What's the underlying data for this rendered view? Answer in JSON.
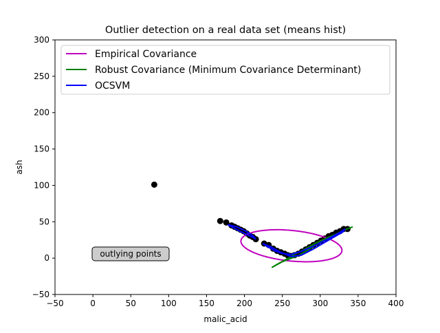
{
  "chart_data": {
    "type": "scatter",
    "title": "Outlier detection on a real data set (means hist)",
    "xlabel": "malic_acid",
    "ylabel": "ash",
    "xlim": [
      -50,
      400
    ],
    "ylim": [
      -50,
      300
    ],
    "xticks": [
      -50,
      0,
      50,
      100,
      150,
      200,
      250,
      300,
      350,
      400
    ],
    "yticks": [
      -50,
      0,
      50,
      100,
      150,
      200,
      250,
      300
    ],
    "grid": false,
    "legend": {
      "placement": "top-left",
      "entries": [
        {
          "label": "Empirical Covariance",
          "color": "#bf00bf"
        },
        {
          "label": "Robust Covariance (Minimum Covariance Determinant)",
          "color": "#008000"
        },
        {
          "label": "OCSVM",
          "color": "#0000ff"
        }
      ]
    },
    "annotation": {
      "text": "outlying points",
      "x": 5,
      "y": 5
    },
    "points": {
      "color": "#000000",
      "x": [
        81,
        168,
        176,
        183,
        187,
        191,
        195,
        199,
        203,
        207,
        211,
        215,
        226,
        232,
        238,
        243,
        248,
        253,
        257,
        261,
        266,
        271,
        276,
        281,
        286,
        291,
        296,
        301,
        306,
        311,
        316,
        321,
        326,
        331,
        336
      ],
      "y": [
        101,
        51,
        49,
        45,
        43,
        41,
        39,
        37,
        34,
        31,
        29,
        26,
        20,
        18,
        13,
        10,
        8,
        6,
        4,
        3,
        4,
        6,
        9,
        12,
        15,
        18,
        21,
        24,
        27,
        30,
        32,
        35,
        37,
        40,
        40
      ]
    },
    "ellipses": [
      {
        "name": "Empirical Covariance",
        "color": "#bf00bf",
        "center": [
          262,
          17
        ],
        "semi_axes": [
          67,
          21
        ],
        "angle_deg": -6
      }
    ],
    "curves": [
      {
        "name": "Robust Covariance (Minimum Covariance Determinant)",
        "color": "#008000",
        "x": [
          236,
          250,
          262,
          270,
          280,
          293,
          307,
          321,
          335,
          343,
          335,
          321,
          307,
          293,
          279,
          266,
          258,
          251,
          244,
          236
        ],
        "y": [
          -13,
          -5,
          0,
          3,
          9,
          17,
          25,
          32,
          40,
          43,
          40,
          33,
          27,
          20,
          12,
          5,
          0,
          -4,
          -8,
          -13
        ]
      },
      {
        "name": "OCSVM",
        "color": "#0000ff",
        "x": [
          178,
          190,
          202,
          212,
          215,
          212,
          202,
          190,
          178
        ],
        "y": [
          46,
          43,
          37,
          30,
          26,
          28,
          33,
          39,
          46
        ]
      },
      {
        "name": "OCSVM",
        "color": "#0000ff",
        "x": [
          224,
          234,
          248,
          262,
          275,
          290,
          305,
          320,
          330,
          333,
          327,
          315,
          300,
          286,
          274,
          262,
          251,
          240,
          230,
          224
        ],
        "y": [
          20,
          16,
          8,
          2,
          4,
          12,
          21,
          30,
          36,
          40,
          36,
          29,
          21,
          14,
          9,
          5,
          6,
          10,
          16,
          20
        ]
      }
    ]
  }
}
